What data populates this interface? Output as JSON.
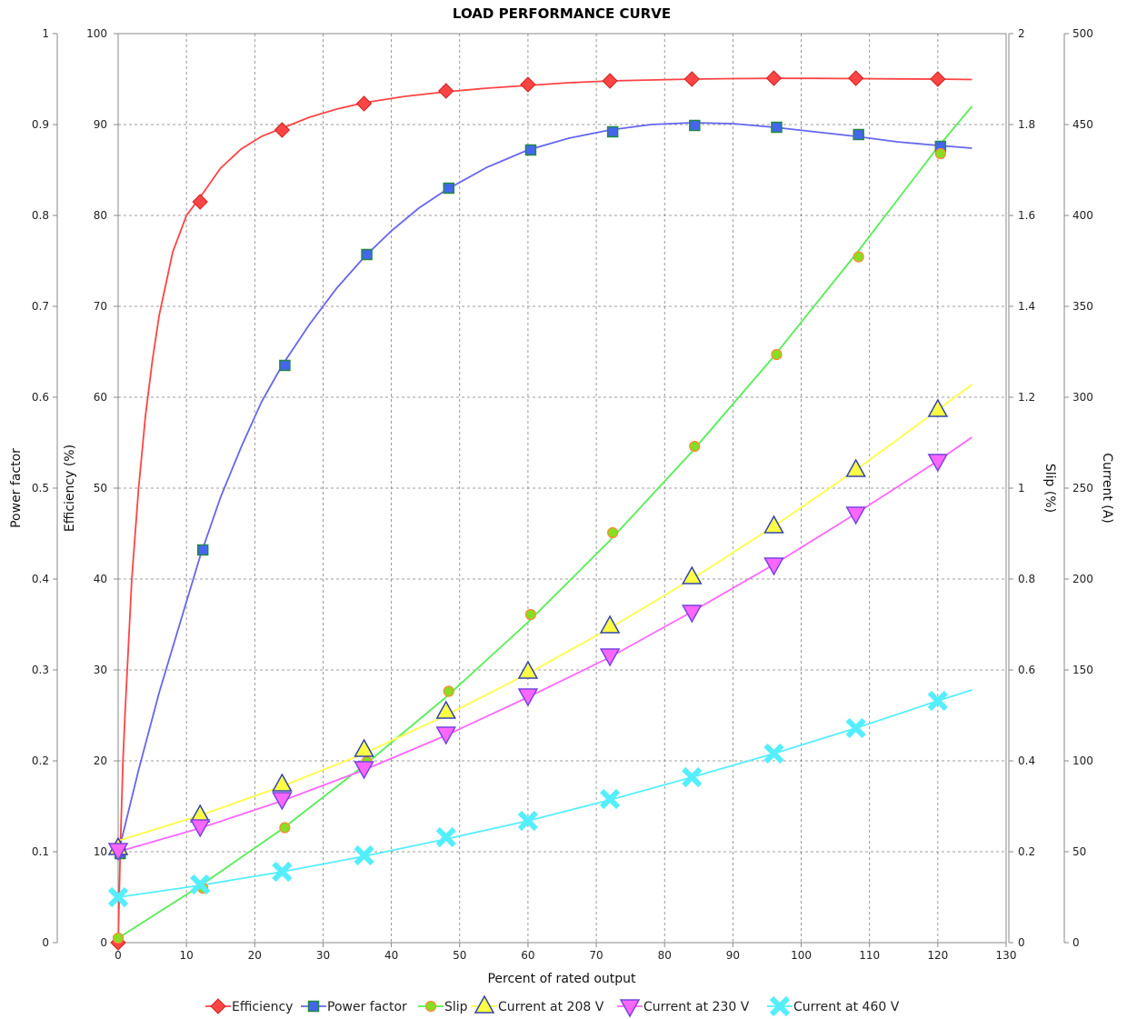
{
  "chart_data": {
    "type": "line",
    "title": "LOAD PERFORMANCE CURVE",
    "xlabel": "Percent of rated output",
    "xlim": [
      0,
      130
    ],
    "x_ticks": [
      "0",
      "10",
      "20",
      "30",
      "40",
      "50",
      "60",
      "70",
      "80",
      "90",
      "100",
      "110",
      "120",
      "130"
    ],
    "grid": true,
    "legend_position": "bottom",
    "axes": {
      "power_factor": {
        "label": "Power factor",
        "range": [
          0,
          1
        ],
        "side": "left",
        "ticks": [
          "0",
          "0.1",
          "0.2",
          "0.3",
          "0.4",
          "0.5",
          "0.6",
          "0.7",
          "0.8",
          "0.9",
          "1"
        ]
      },
      "efficiency": {
        "label": "Efficiency (%)",
        "range": [
          0,
          100
        ],
        "side": "left",
        "ticks": [
          "0",
          "10",
          "20",
          "30",
          "40",
          "50",
          "60",
          "70",
          "80",
          "90",
          "100"
        ]
      },
      "slip": {
        "label": "Slip (%)",
        "range": [
          0,
          2
        ],
        "side": "right",
        "ticks": [
          "0",
          "0.2",
          "0.4",
          "0.6",
          "0.8",
          "1",
          "1.2",
          "1.4",
          "1.6",
          "1.8",
          "2"
        ]
      },
      "current": {
        "label": "Current (A)",
        "range": [
          0,
          500
        ],
        "side": "right",
        "ticks": [
          "0",
          "50",
          "100",
          "150",
          "200",
          "250",
          "300",
          "350",
          "400",
          "450",
          "500"
        ]
      }
    },
    "series": [
      {
        "name": "Efficiency",
        "axis": "efficiency",
        "color": "#ff4444",
        "marker": "diamond",
        "points": [
          [
            0,
            0
          ],
          [
            12,
            81.5
          ],
          [
            24,
            89.4
          ],
          [
            36,
            92.3
          ],
          [
            48,
            93.7
          ],
          [
            60,
            94.4
          ],
          [
            72,
            94.8
          ],
          [
            84,
            95.0
          ],
          [
            96,
            95.1
          ],
          [
            108,
            95.1
          ],
          [
            120,
            95.0
          ]
        ],
        "curve": [
          [
            0,
            0
          ],
          [
            0.3,
            10
          ],
          [
            0.7,
            20
          ],
          [
            1,
            25
          ],
          [
            2,
            40
          ],
          [
            3,
            50
          ],
          [
            4,
            58
          ],
          [
            5,
            64
          ],
          [
            6,
            69
          ],
          [
            8,
            76
          ],
          [
            10,
            80
          ],
          [
            12,
            82
          ],
          [
            15,
            85.2
          ],
          [
            18,
            87.3
          ],
          [
            21,
            88.7
          ],
          [
            24,
            89.6
          ],
          [
            28,
            90.8
          ],
          [
            32,
            91.7
          ],
          [
            36,
            92.4
          ],
          [
            42,
            93.1
          ],
          [
            48,
            93.6
          ],
          [
            54,
            94
          ],
          [
            60,
            94.3
          ],
          [
            66,
            94.6
          ],
          [
            72,
            94.8
          ],
          [
            78,
            94.9
          ],
          [
            84,
            95
          ],
          [
            90,
            95.05
          ],
          [
            96,
            95.08
          ],
          [
            102,
            95.08
          ],
          [
            108,
            95.05
          ],
          [
            114,
            95.02
          ],
          [
            120,
            95
          ],
          [
            125,
            94.95
          ]
        ]
      },
      {
        "name": "Power factor",
        "axis": "power_factor",
        "color": "#6666ee",
        "marker": "square",
        "points": [
          [
            0.3,
            0.098
          ],
          [
            12.4,
            0.432
          ],
          [
            24.4,
            0.635
          ],
          [
            36.4,
            0.757
          ],
          [
            48.4,
            0.83
          ],
          [
            60.4,
            0.872
          ],
          [
            72.4,
            0.892
          ],
          [
            84.4,
            0.899
          ],
          [
            96.4,
            0.897
          ],
          [
            108.4,
            0.889
          ],
          [
            120.4,
            0.876
          ]
        ],
        "curve": [
          [
            0,
            0.098
          ],
          [
            3,
            0.19
          ],
          [
            6,
            0.275
          ],
          [
            9,
            0.35
          ],
          [
            12,
            0.425
          ],
          [
            15,
            0.49
          ],
          [
            18,
            0.545
          ],
          [
            21,
            0.595
          ],
          [
            24,
            0.635
          ],
          [
            28,
            0.68
          ],
          [
            32,
            0.72
          ],
          [
            36,
            0.754
          ],
          [
            40,
            0.783
          ],
          [
            44,
            0.808
          ],
          [
            48,
            0.828
          ],
          [
            54,
            0.853
          ],
          [
            60,
            0.872
          ],
          [
            66,
            0.885
          ],
          [
            72,
            0.894
          ],
          [
            78,
            0.9
          ],
          [
            84,
            0.902
          ],
          [
            90,
            0.901
          ],
          [
            96,
            0.897
          ],
          [
            102,
            0.892
          ],
          [
            108,
            0.887
          ],
          [
            114,
            0.881
          ],
          [
            120,
            0.877
          ],
          [
            125,
            0.874
          ]
        ]
      },
      {
        "name": "Slip",
        "axis": "slip",
        "color": "#55ee55",
        "marker": "circle",
        "points": [
          [
            0,
            0.01
          ],
          [
            12.4,
            0.12
          ],
          [
            24.4,
            0.253
          ],
          [
            36.4,
            0.398
          ],
          [
            48.4,
            0.553
          ],
          [
            60.4,
            0.722
          ],
          [
            72.4,
            0.902
          ],
          [
            84.4,
            1.092
          ],
          [
            96.4,
            1.294
          ],
          [
            108.4,
            1.509
          ],
          [
            120.4,
            1.736
          ]
        ],
        "curve": [
          [
            0,
            0.01
          ],
          [
            12,
            0.125
          ],
          [
            24,
            0.25
          ],
          [
            36,
            0.39
          ],
          [
            48,
            0.54
          ],
          [
            60,
            0.705
          ],
          [
            72,
            0.885
          ],
          [
            84,
            1.08
          ],
          [
            96,
            1.29
          ],
          [
            108,
            1.515
          ],
          [
            120,
            1.75
          ],
          [
            125,
            1.84
          ]
        ]
      },
      {
        "name": "Current at 208 V",
        "axis": "current",
        "color": "#ffff44",
        "marker": "triangle-up",
        "points": [
          [
            0,
            52
          ],
          [
            12,
            70
          ],
          [
            24,
            87
          ],
          [
            36,
            106
          ],
          [
            48,
            127
          ],
          [
            60,
            149
          ],
          [
            72,
            174
          ],
          [
            84,
            201
          ],
          [
            96,
            229
          ],
          [
            108,
            260
          ],
          [
            120,
            293
          ]
        ],
        "curve": [
          [
            0,
            56
          ],
          [
            12,
            70
          ],
          [
            24,
            86
          ],
          [
            36,
            104
          ],
          [
            48,
            125
          ],
          [
            60,
            148
          ],
          [
            72,
            173
          ],
          [
            84,
            200
          ],
          [
            96,
            229
          ],
          [
            108,
            260
          ],
          [
            120,
            293
          ],
          [
            125,
            307
          ]
        ]
      },
      {
        "name": "Current at 230 V",
        "axis": "current",
        "color": "#ff66ff",
        "marker": "triangle-down",
        "points": [
          [
            0,
            51
          ],
          [
            12,
            64
          ],
          [
            24,
            79
          ],
          [
            36,
            96
          ],
          [
            48,
            115
          ],
          [
            60,
            136
          ],
          [
            72,
            158
          ],
          [
            84,
            182
          ],
          [
            96,
            208
          ],
          [
            108,
            236
          ],
          [
            120,
            265
          ]
        ],
        "curve": [
          [
            0,
            50
          ],
          [
            12,
            63
          ],
          [
            24,
            78
          ],
          [
            36,
            95
          ],
          [
            48,
            114
          ],
          [
            60,
            135
          ],
          [
            72,
            157
          ],
          [
            84,
            182
          ],
          [
            96,
            208
          ],
          [
            108,
            236
          ],
          [
            120,
            265
          ],
          [
            125,
            278
          ]
        ]
      },
      {
        "name": "Current at 460 V",
        "axis": "current",
        "color": "#55eeff",
        "marker": "x",
        "points": [
          [
            0,
            25
          ],
          [
            12,
            32
          ],
          [
            24,
            39
          ],
          [
            36,
            48
          ],
          [
            48,
            58
          ],
          [
            60,
            67
          ],
          [
            72,
            79
          ],
          [
            84,
            91
          ],
          [
            96,
            104
          ],
          [
            108,
            118
          ],
          [
            120,
            133
          ]
        ],
        "curve": [
          [
            0,
            25
          ],
          [
            12,
            31.5
          ],
          [
            24,
            39
          ],
          [
            36,
            47.5
          ],
          [
            48,
            57
          ],
          [
            60,
            67
          ],
          [
            72,
            78.5
          ],
          [
            84,
            91
          ],
          [
            96,
            104
          ],
          [
            108,
            118
          ],
          [
            120,
            133
          ],
          [
            125,
            139
          ]
        ]
      }
    ]
  }
}
